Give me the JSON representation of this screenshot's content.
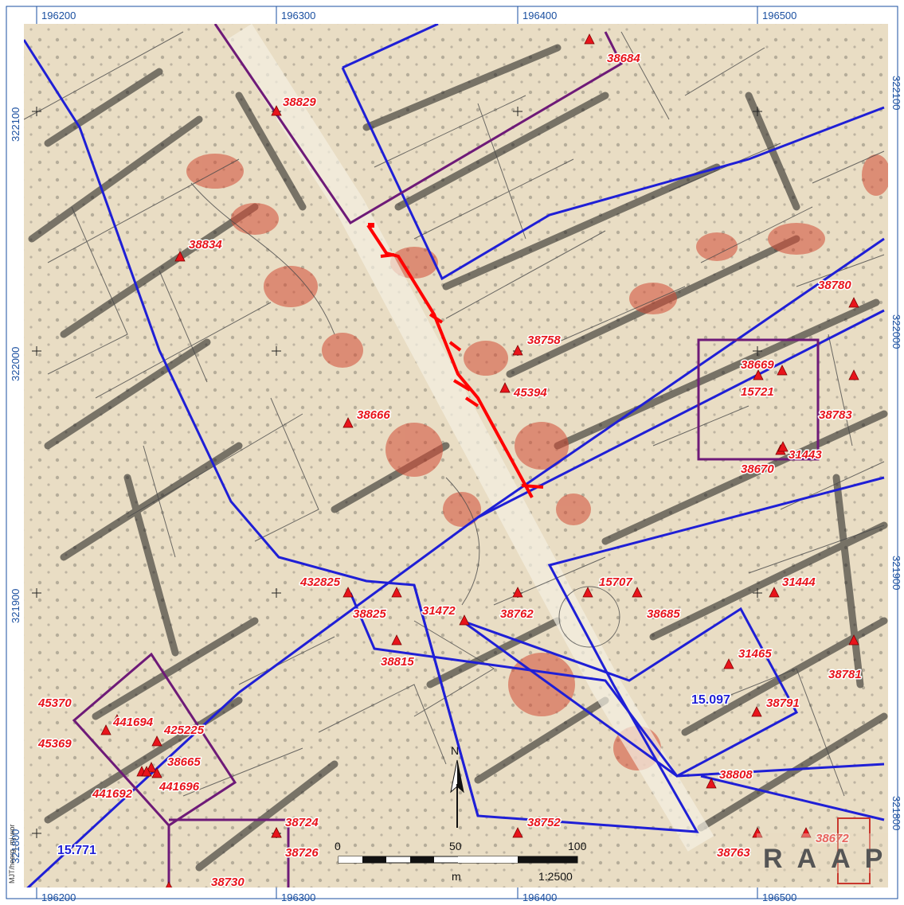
{
  "coords": {
    "x_labels": [
      "196200",
      "196300",
      "196400",
      "196500"
    ],
    "y_labels": [
      "322100",
      "322000",
      "321900",
      "321800"
    ]
  },
  "sites": [
    {
      "label": "38684"
    },
    {
      "label": "38829"
    },
    {
      "label": "38834"
    },
    {
      "label": "38758"
    },
    {
      "label": "45394"
    },
    {
      "label": "38666"
    },
    {
      "label": "38780"
    },
    {
      "label": "38669"
    },
    {
      "label": "15721"
    },
    {
      "label": "38783"
    },
    {
      "label": "38670"
    },
    {
      "label": "31443"
    },
    {
      "label": "432825"
    },
    {
      "label": "38825"
    },
    {
      "label": "31472"
    },
    {
      "label": "38762"
    },
    {
      "label": "15707"
    },
    {
      "label": "38685"
    },
    {
      "label": "31444"
    },
    {
      "label": "38815"
    },
    {
      "label": "31465"
    },
    {
      "label": "38781"
    },
    {
      "label": "38791"
    },
    {
      "label": "45370"
    },
    {
      "label": "441694"
    },
    {
      "label": "425225"
    },
    {
      "label": "45369"
    },
    {
      "label": "38665"
    },
    {
      "label": "441692"
    },
    {
      "label": "441696"
    },
    {
      "label": "38808"
    },
    {
      "label": "38724"
    },
    {
      "label": "38752"
    },
    {
      "label": "38726"
    },
    {
      "label": "38730"
    },
    {
      "label": "38763"
    },
    {
      "label": "38672"
    }
  ],
  "zone_labels": [
    "15.097",
    "15.771"
  ],
  "north_arrow": {
    "label": "N"
  },
  "scale_bar": {
    "ticks": [
      "0",
      "50",
      "100"
    ],
    "unit": "m",
    "ratio": "1:2500"
  },
  "credit": "MJT/heerg_mj.wor",
  "logo": {
    "text": "RAAP"
  },
  "colors": {
    "site_marker": "#e8141b",
    "pipeline": "#ff0000",
    "blue_boundary": "#1f1fd6",
    "purple_boundary": "#6e1a78",
    "parcel_line": "#4a4a4a",
    "background": "#e9ddc4",
    "frame_text": "#1a4fa0"
  }
}
